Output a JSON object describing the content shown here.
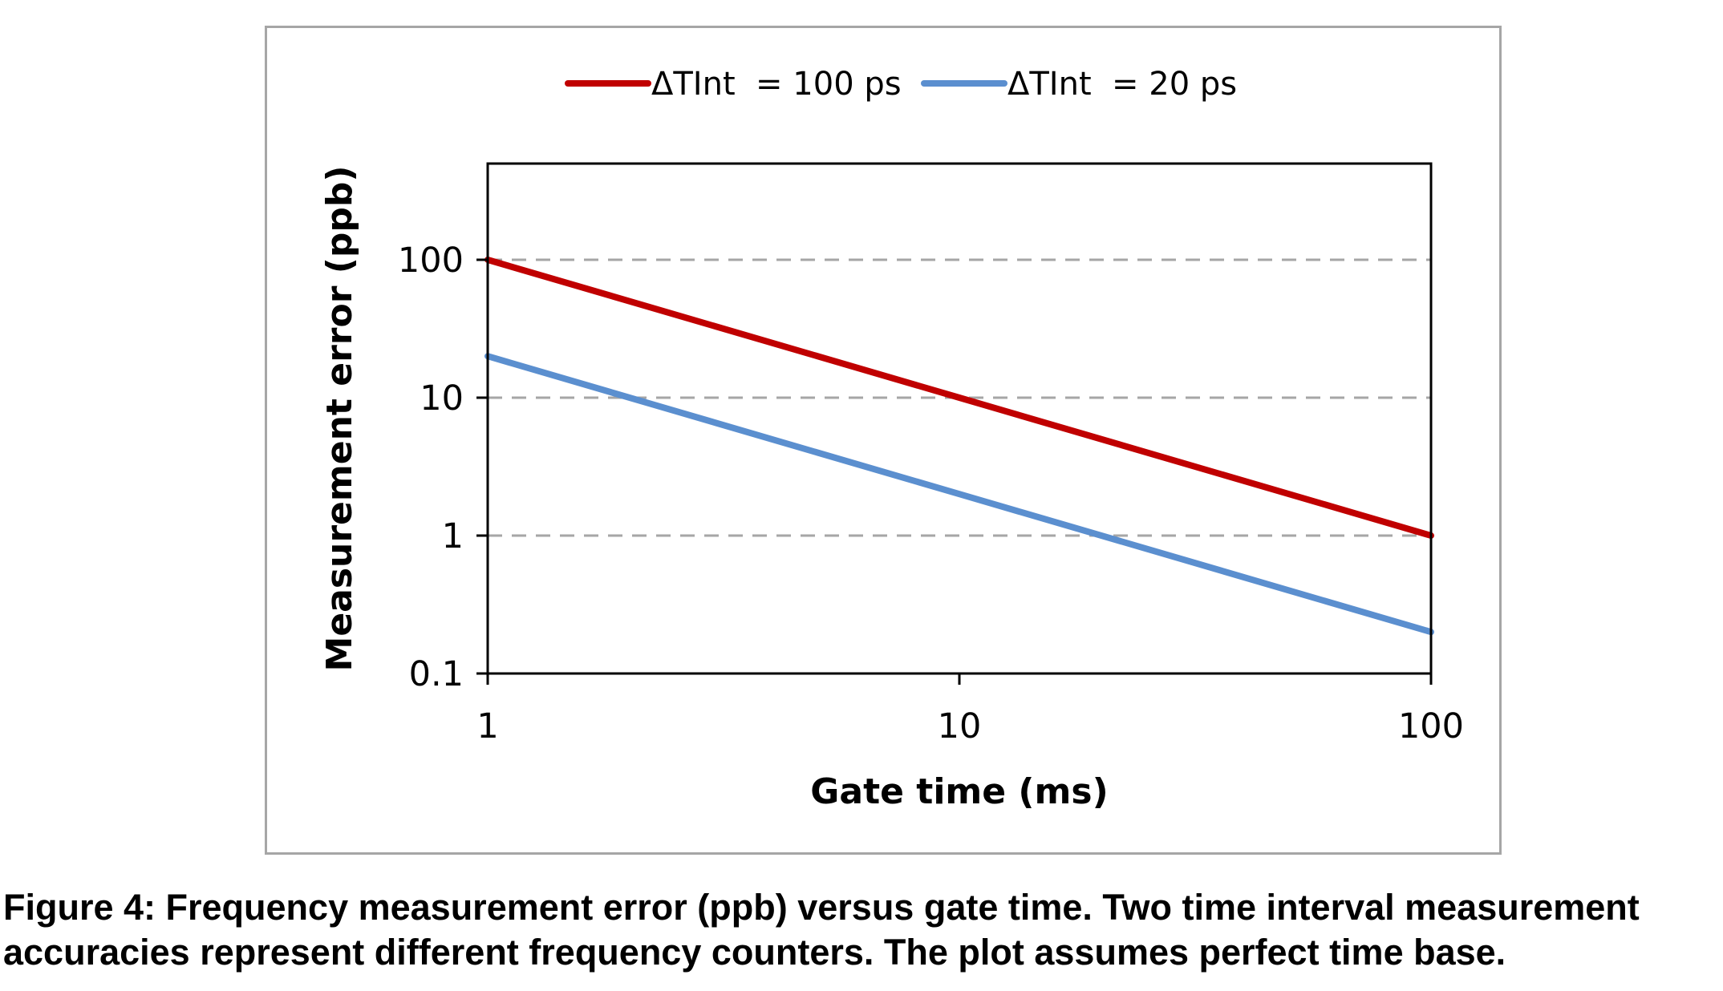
{
  "chart_data": {
    "type": "line",
    "xlabel": "Gate time (ms)",
    "ylabel": "Measurement error (ppb)",
    "x_scale": "log",
    "y_scale": "log",
    "xlim": [
      1,
      100
    ],
    "ylim": [
      0.1,
      500
    ],
    "x_ticks": [
      "1",
      "10",
      "100"
    ],
    "y_ticks": [
      "0.1",
      "1",
      "10",
      "100"
    ],
    "y_tick_values": [
      0.1,
      1,
      10,
      100
    ],
    "x_tick_values": [
      1,
      10,
      100
    ],
    "grid": "horizontal dashed",
    "legend_position": "top",
    "series": [
      {
        "name": "ΔTInt  = 100 ps",
        "color": "#c00000",
        "x": [
          1,
          10,
          100
        ],
        "y": [
          100,
          10,
          1
        ]
      },
      {
        "name": "ΔTInt  = 20 ps",
        "color": "#5b8fcf",
        "x": [
          1,
          10,
          100
        ],
        "y": [
          20,
          2,
          0.2
        ]
      }
    ]
  },
  "caption": {
    "line1": "Figure 4: Frequency measurement error (ppb) versus gate time. Two time interval measurement",
    "line2": "accuracies represent different frequency counters. The plot assumes perfect time base."
  }
}
